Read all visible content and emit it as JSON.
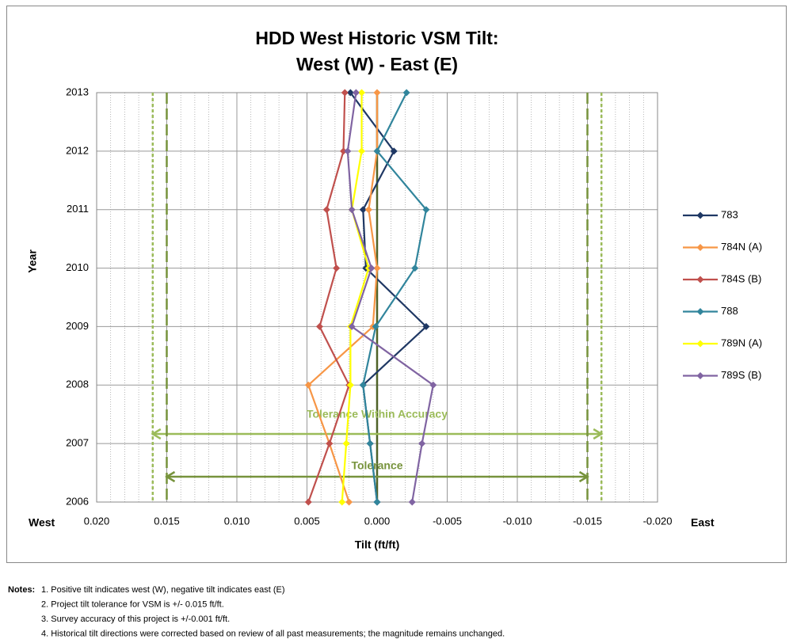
{
  "chart_data": {
    "type": "line",
    "title": [
      "HDD West Historic VSM Tilt:",
      "West (W) - East (E)"
    ],
    "x_label": "Tilt (ft/ft)",
    "y_label": "Year",
    "west_label": "West",
    "east_label": "East",
    "y": [
      2006,
      2007,
      2008,
      2009,
      2010,
      2011,
      2012,
      2013
    ],
    "xlim": [
      0.02,
      -0.02
    ],
    "xticks": [
      {
        "value": 0.02,
        "label": "0.020"
      },
      0.015,
      {
        "value": 0.01,
        "label": "0.010"
      },
      0.005,
      {
        "value": 0,
        "label": "0.000"
      },
      -0.005,
      {
        "value": -0.01,
        "label": "-0.010"
      },
      -0.015,
      {
        "value": -0.02,
        "label": "-0.020"
      }
    ],
    "x_minor_grid": 0.001,
    "ylim": [
      2006,
      2013
    ],
    "yticks": [
      2006,
      2007,
      2008,
      2009,
      2010,
      2011,
      2012,
      2013
    ],
    "grid": true,
    "legend": "right",
    "series": [
      {
        "name": "783",
        "color": "#1f3864",
        "values": [
          0,
          0.0005,
          0.001,
          -0.0035,
          0.0008,
          0.001,
          -0.0012,
          0.0019
        ]
      },
      {
        "name": "784N (A)",
        "color": "#f79646",
        "values": [
          0.002,
          0.0034,
          0.0049,
          0.0003,
          0,
          0.0006,
          0,
          0
        ]
      },
      {
        "name": "784S (B)",
        "color": "#c0504d",
        "values": [
          0.0049,
          0.0034,
          0.002,
          0.0041,
          0.0029,
          0.0036,
          0.0024,
          0.0023
        ]
      },
      {
        "name": "788",
        "color": "#31859c",
        "values": [
          0,
          0.0005,
          0.001,
          0.0001,
          -0.0027,
          -0.0035,
          0,
          -0.0021
        ]
      },
      {
        "name": "789N (A)",
        "color": "#ffff00",
        "values": [
          0.0025,
          0.0022,
          0.0019,
          0.0019,
          0.0006,
          0.0018,
          0.0011,
          0.0011
        ]
      },
      {
        "name": "789S (B)",
        "color": "#8064a2",
        "values": [
          -0.0025,
          -0.0032,
          -0.004,
          0.0018,
          0.0004,
          0.0018,
          0.0021,
          0.0015
        ]
      }
    ],
    "zero_line": {
      "value": 0,
      "color": "#4f6228"
    },
    "tolerance": {
      "label": "Tolerance",
      "range": [
        0.015,
        -0.015
      ],
      "color": "#77933c"
    },
    "tolerance_accuracy": {
      "label": "Tolerance Within Accuracy",
      "range": [
        0.016,
        -0.016
      ],
      "color": "#9bbb59"
    },
    "notes_label": "Notes:",
    "notes": [
      "1. Positive tilt indicates west (W), negative tilt indicates east (E)",
      "2. Project tilt tolerance for VSM is +/- 0.015 ft/ft.",
      "3. Survey accuracy of this project is +/-0.001 ft/ft.",
      "4. Historical tilt directions were corrected based on review of all past measurements; the magnitude remains unchanged."
    ]
  }
}
